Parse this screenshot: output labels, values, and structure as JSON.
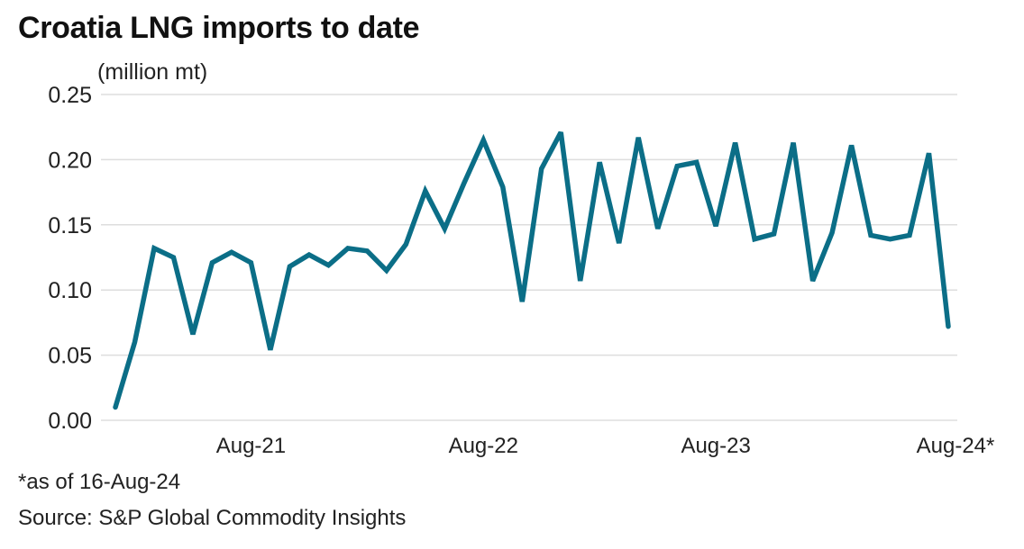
{
  "chart_data": {
    "type": "line",
    "title": "Croatia LNG imports to date",
    "ylabel": "(million mt)",
    "xlabel": "",
    "ylim": [
      0,
      0.25
    ],
    "yticks": [
      0.0,
      0.05,
      0.1,
      0.15,
      0.2,
      0.25
    ],
    "ytick_labels": [
      "0.00",
      "0.05",
      "0.10",
      "0.15",
      "0.20",
      "0.25"
    ],
    "xtick_labels": [
      "Aug-21",
      "Aug-22",
      "Aug-23",
      "Aug-24*"
    ],
    "xtick_positions": [
      "Aug-21",
      "Aug-22",
      "Aug-23",
      "Aug-24"
    ],
    "grid": true,
    "legend": "none",
    "line_color": "#0b6e87",
    "grid_color": "#dddddd",
    "x": [
      "Jan-21",
      "Feb-21",
      "Mar-21",
      "Apr-21",
      "May-21",
      "Jun-21",
      "Jul-21",
      "Aug-21",
      "Sep-21",
      "Oct-21",
      "Nov-21",
      "Dec-21",
      "Jan-22",
      "Feb-22",
      "Mar-22",
      "Apr-22",
      "May-22",
      "Jun-22",
      "Jul-22",
      "Aug-22",
      "Sep-22",
      "Oct-22",
      "Nov-22",
      "Dec-22",
      "Jan-23",
      "Feb-23",
      "Mar-23",
      "Apr-23",
      "May-23",
      "Jun-23",
      "Jul-23",
      "Aug-23",
      "Sep-23",
      "Oct-23",
      "Nov-23",
      "Dec-23",
      "Jan-24",
      "Feb-24",
      "Mar-24",
      "Apr-24",
      "May-24",
      "Jun-24",
      "Jul-24",
      "Aug-24"
    ],
    "series": [
      {
        "name": "Croatia LNG imports",
        "values": [
          0.01,
          0.06,
          0.132,
          0.125,
          0.066,
          0.121,
          0.129,
          0.121,
          0.054,
          0.118,
          0.127,
          0.119,
          0.132,
          0.13,
          0.115,
          0.135,
          0.176,
          0.147,
          0.182,
          0.215,
          0.179,
          0.091,
          0.193,
          0.221,
          0.107,
          0.198,
          0.136,
          0.217,
          0.147,
          0.195,
          0.198,
          0.149,
          0.213,
          0.139,
          0.143,
          0.213,
          0.107,
          0.144,
          0.211,
          0.142,
          0.139,
          0.142,
          0.205,
          0.072
        ]
      }
    ]
  },
  "footer": {
    "note": "*as of 16-Aug-24",
    "source": "Source: S&P Global Commodity Insights"
  }
}
